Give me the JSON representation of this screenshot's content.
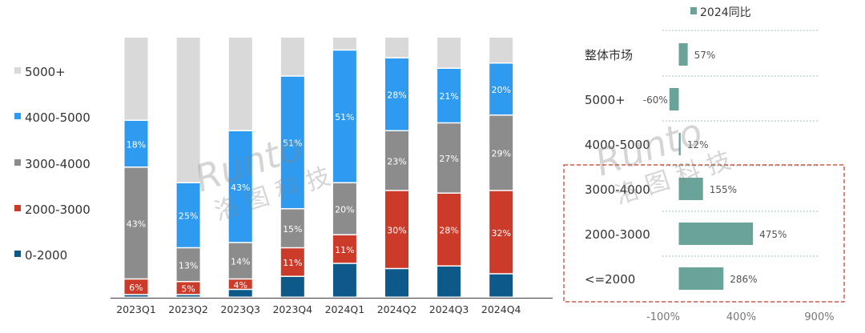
{
  "chart_data": [
    {
      "type": "bar",
      "stacked": true,
      "percent_stacked": true,
      "categories": [
        "2023Q1",
        "2023Q2",
        "2023Q3",
        "2023Q4",
        "2024Q1",
        "2024Q2",
        "2024Q3",
        "2024Q4"
      ],
      "legend_position": "left",
      "series": [
        {
          "name": "0-2000",
          "color": "#0d5a8a",
          "values": [
            1,
            1,
            3,
            8,
            13,
            11,
            12,
            9
          ],
          "labels": [
            "",
            "",
            "",
            "",
            "",
            "",
            "",
            ""
          ]
        },
        {
          "name": "2000-3000",
          "color": "#cc3b2a",
          "values": [
            6,
            5,
            4,
            11,
            11,
            30,
            28,
            32
          ],
          "labels": [
            "6%",
            "5%",
            "4%",
            "11%",
            "11%",
            "30%",
            "28%",
            "32%"
          ]
        },
        {
          "name": "3000-4000",
          "color": "#8c8c8c",
          "values": [
            43,
            13,
            14,
            15,
            20,
            23,
            27,
            29
          ],
          "labels": [
            "43%",
            "13%",
            "14%",
            "15%",
            "20%",
            "23%",
            "27%",
            "29%"
          ]
        },
        {
          "name": "4000-5000",
          "color": "#2e9af0",
          "values": [
            18,
            25,
            43,
            51,
            51,
            28,
            21,
            20
          ],
          "labels": [
            "18%",
            "25%",
            "43%",
            "51%",
            "51%",
            "28%",
            "21%",
            "20%"
          ]
        },
        {
          "name": "5000+",
          "color": "#d9d9d9",
          "values": [
            32,
            56,
            36,
            15,
            5,
            8,
            12,
            10
          ],
          "labels": [
            "",
            "",
            "",
            "",
            "",
            "",
            "",
            ""
          ]
        }
      ],
      "legend_order": [
        "5000+",
        "4000-5000",
        "3000-4000",
        "2000-3000",
        "0-2000"
      ],
      "ylim": [
        0,
        100
      ],
      "grid": false
    },
    {
      "type": "bar",
      "orientation": "horizontal",
      "categories": [
        "整体市场",
        "5000+",
        "4000-5000",
        "3000-4000",
        "2000-3000",
        "<=2000"
      ],
      "series": [
        {
          "name": "2024同比",
          "color": "#6aa39a",
          "values": [
            57,
            -60,
            12,
            155,
            475,
            286
          ],
          "labels": [
            "57%",
            "-60%",
            "12%",
            "155%",
            "475%",
            "286%"
          ]
        }
      ],
      "xlim": [
        -100,
        900
      ],
      "xticks": [
        "-100%",
        "400%",
        "900%"
      ],
      "grid": true,
      "legend_position": "top",
      "highlight_box": {
        "categories": [
          "3000-4000",
          "2000-3000",
          "<=2000"
        ],
        "color": "#c0392b"
      }
    }
  ],
  "watermark": "Runto 洛图科技"
}
